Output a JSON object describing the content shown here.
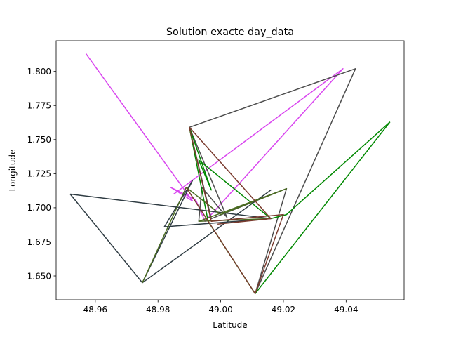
{
  "chart_data": {
    "type": "line",
    "title": "Solution exacte day_data",
    "xlabel": "Latitude",
    "ylabel": "Longitude",
    "xlim": [
      48.9475,
      49.0585
    ],
    "ylim": [
      1.6325,
      1.8225
    ],
    "xticks": [
      48.96,
      48.98,
      49.0,
      49.02,
      49.04
    ],
    "xtick_labels": [
      "48.96",
      "48.98",
      "49.00",
      "49.02",
      "49.04"
    ],
    "yticks": [
      1.65,
      1.675,
      1.7,
      1.725,
      1.75,
      1.775,
      1.8
    ],
    "ytick_labels": [
      "1.650",
      "1.675",
      "1.700",
      "1.725",
      "1.750",
      "1.775",
      "1.800"
    ],
    "grid": false,
    "series": [
      {
        "color": "#d946ef",
        "points": [
          [
            48.957,
            1.813
          ],
          [
            48.991,
            1.705
          ],
          [
            48.984,
            1.715
          ],
          [
            48.992,
            1.706
          ],
          [
            48.995,
            1.69
          ],
          [
            49.039,
            1.802
          ],
          [
            48.985,
            1.71
          ]
        ]
      },
      {
        "color": "#4d4d4d",
        "points": [
          [
            48.99,
            1.759
          ],
          [
            49.043,
            1.802
          ],
          [
            49.011,
            1.637
          ],
          [
            49.021,
            1.714
          ],
          [
            48.997,
            1.692
          ],
          [
            48.99,
            1.759
          ],
          [
            49.002,
            1.693
          ],
          [
            48.994,
            1.715
          ],
          [
            48.993,
            1.69
          ]
        ]
      },
      {
        "color": "#008800",
        "points": [
          [
            49.054,
            1.763
          ],
          [
            49.011,
            1.637
          ],
          [
            48.996,
            1.69
          ],
          [
            48.99,
            1.759
          ],
          [
            48.997,
            1.713
          ],
          [
            48.993,
            1.735
          ],
          [
            49.016,
            1.692
          ],
          [
            49.021,
            1.695
          ],
          [
            49.054,
            1.763
          ]
        ]
      },
      {
        "color": "#2e3b42",
        "points": [
          [
            48.952,
            1.71
          ],
          [
            49.016,
            1.692
          ],
          [
            48.982,
            1.686
          ],
          [
            48.991,
            1.72
          ],
          [
            48.975,
            1.645
          ],
          [
            49.016,
            1.713
          ],
          [
            48.975,
            1.645
          ],
          [
            48.952,
            1.71
          ]
        ]
      },
      {
        "color": "#4a6b21",
        "points": [
          [
            48.975,
            1.645
          ],
          [
            48.989,
            1.715
          ],
          [
            49.0,
            1.695
          ],
          [
            49.021,
            1.714
          ],
          [
            48.993,
            1.69
          ],
          [
            49.016,
            1.692
          ]
        ]
      },
      {
        "color": "#7a3b2e",
        "points": [
          [
            48.989,
            1.715
          ],
          [
            49.011,
            1.637
          ],
          [
            49.02,
            1.695
          ],
          [
            48.997,
            1.69
          ],
          [
            48.99,
            1.759
          ],
          [
            49.016,
            1.692
          ],
          [
            48.999,
            1.688
          ]
        ]
      }
    ]
  }
}
